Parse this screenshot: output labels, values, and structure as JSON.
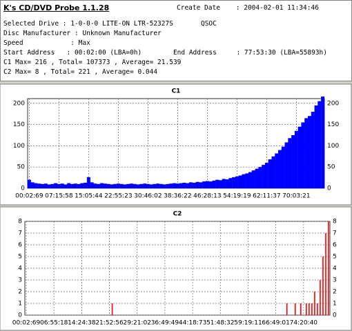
{
  "header": {
    "title": "K's CD/DVD Probe 1.1.28",
    "create_date": "Create Date    : 2004-02-01 11:34:46",
    "lines": [
      "Selected Drive : 1-0-0-0 LITE-ON LTR-52327S       QSOC",
      "Disc Manufacturer : Unknown Manufacturer",
      "Speed            : Max",
      "Start Address   : 00:02:00 (LBA=0h)        End Address     : 77:53:30 (LBA=55893h)",
      "C1 Max= 216 , Total= 107373 , Average= 21.539",
      "C2 Max= 8 , Total= 221 , Average= 0.044"
    ]
  },
  "chart_data": [
    {
      "type": "bar",
      "title": "C1",
      "color": "#0000ff",
      "grid": true,
      "categories": [
        "00:02:69",
        null,
        null,
        null,
        null,
        null,
        null,
        null,
        null,
        "07:15:58",
        null,
        null,
        null,
        null,
        null,
        null,
        null,
        null,
        "15:05:44",
        null,
        null,
        null,
        null,
        null,
        null,
        null,
        null,
        "22:55:23",
        null,
        null,
        null,
        null,
        null,
        null,
        null,
        null,
        "30:46:02",
        null,
        null,
        null,
        null,
        null,
        null,
        null,
        null,
        "38:36:22",
        null,
        null,
        null,
        null,
        null,
        null,
        null,
        null,
        "46:28:13",
        null,
        null,
        null,
        null,
        null,
        null,
        null,
        null,
        "54:19:19",
        null,
        null,
        null,
        null,
        null,
        null,
        null,
        null,
        "62:11:37",
        null,
        null,
        null,
        null,
        null,
        null,
        null,
        null,
        "70:03:21",
        null,
        null,
        null,
        null,
        null,
        null,
        null,
        null
      ],
      "values": [
        20,
        14,
        12,
        11,
        10,
        11,
        9,
        10,
        12,
        10,
        11,
        9,
        12,
        10,
        11,
        10,
        12,
        13,
        26,
        14,
        11,
        10,
        12,
        11,
        10,
        9,
        10,
        11,
        10,
        9,
        10,
        11,
        10,
        9,
        10,
        11,
        10,
        9,
        10,
        11,
        10,
        9,
        10,
        11,
        12,
        11,
        12,
        13,
        12,
        14,
        13,
        15,
        14,
        16,
        17,
        16,
        18,
        20,
        19,
        22,
        21,
        24,
        26,
        28,
        30,
        33,
        35,
        38,
        42,
        46,
        50,
        55,
        60,
        68,
        75,
        82,
        90,
        98,
        108,
        118,
        125,
        135,
        145,
        155,
        165,
        170,
        180,
        195,
        205,
        216
      ],
      "ylim": [
        0,
        211
      ],
      "yticks": [
        0,
        50,
        100,
        150,
        200
      ]
    },
    {
      "type": "bar",
      "title": "C2",
      "color": "#ff0000",
      "grid": true,
      "categories": [
        "00:02:69",
        null,
        null,
        null,
        null,
        null,
        null,
        null,
        null,
        null,
        "06:55:18",
        null,
        null,
        null,
        null,
        null,
        null,
        null,
        null,
        null,
        "14:24:38",
        null,
        null,
        null,
        null,
        null,
        null,
        null,
        null,
        null,
        "21:52:56",
        null,
        null,
        null,
        null,
        null,
        null,
        null,
        null,
        null,
        "29:21:02",
        null,
        null,
        null,
        null,
        null,
        null,
        null,
        null,
        null,
        "36:49:49",
        null,
        null,
        null,
        null,
        null,
        null,
        null,
        null,
        null,
        "44:18:73",
        null,
        null,
        null,
        null,
        null,
        null,
        null,
        null,
        null,
        "51:48:32",
        null,
        null,
        null,
        null,
        null,
        null,
        null,
        null,
        null,
        "59:19:11",
        null,
        null,
        null,
        null,
        null,
        null,
        null,
        null,
        null,
        "66:49:01",
        null,
        null,
        null,
        null,
        null,
        null,
        null,
        null,
        null,
        "74:20:40",
        null,
        null,
        null,
        null,
        null,
        null,
        null,
        null,
        null
      ],
      "values": [
        0,
        0,
        0,
        0,
        0,
        0,
        0,
        0,
        0,
        0,
        0,
        0,
        0,
        0,
        0,
        0,
        0,
        0,
        0,
        0,
        0,
        0,
        0,
        0,
        0,
        0,
        0,
        0,
        0,
        0,
        0,
        1,
        0,
        0,
        0,
        0,
        0,
        0,
        0,
        0,
        0,
        0,
        0,
        0,
        0,
        0,
        0,
        0,
        0,
        0,
        0,
        0,
        0,
        0,
        0,
        0,
        0,
        0,
        0,
        0,
        0,
        0,
        0,
        0,
        0,
        0,
        0,
        0,
        0,
        0,
        0,
        0,
        0,
        0,
        0,
        0,
        0,
        0,
        0,
        0,
        0,
        0,
        0,
        0,
        0,
        0,
        0,
        0,
        0,
        0,
        0,
        0,
        0,
        0,
        1,
        0,
        0,
        1,
        0,
        1,
        0,
        1,
        1,
        1,
        2,
        1,
        3,
        5,
        7,
        8
      ],
      "ylim": [
        0,
        8
      ],
      "yticks": [
        0,
        1,
        2,
        3,
        4,
        5,
        6,
        7,
        8
      ]
    }
  ]
}
